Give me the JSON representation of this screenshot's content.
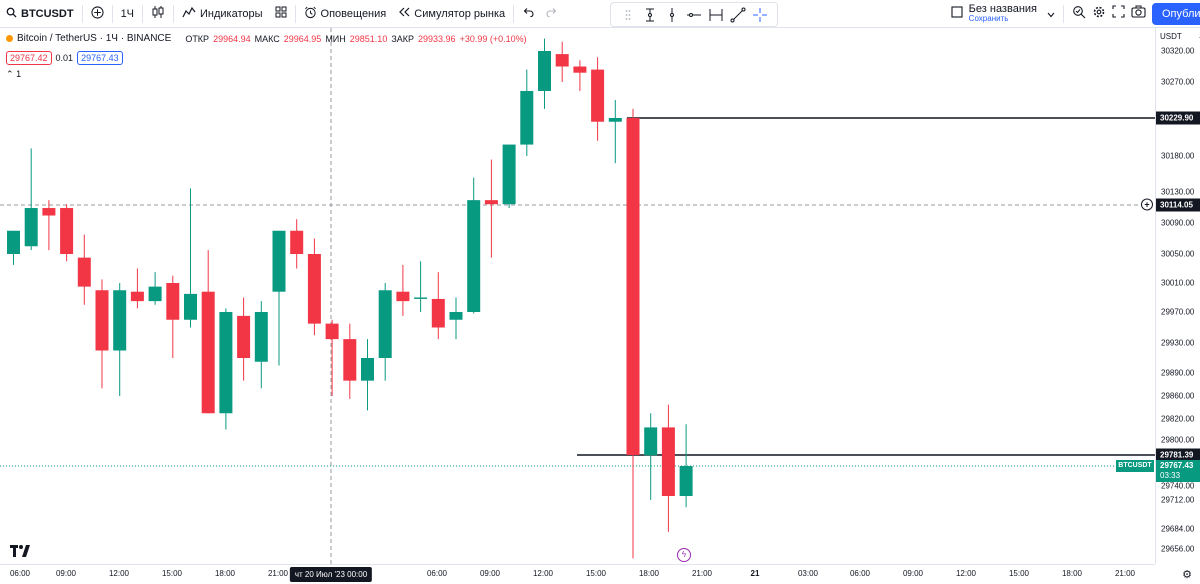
{
  "toolbar": {
    "symbol": "BTCUSDT",
    "interval": "1Ч",
    "indicators": "Индикаторы",
    "alerts": "Оповещения",
    "replay": "Симулятор рынка",
    "layout_title": "Без названия",
    "layout_saved": "Сохранить",
    "publish": "Опубликовать"
  },
  "legend": {
    "title": "Bitcoin / TetherUS · 1Ч · BINANCE",
    "open_label": "ОТКР",
    "open": "29964.94",
    "high_label": "МАКС",
    "high": "29964.95",
    "low_label": "МИН",
    "low": "29851.10",
    "close_label": "ЗАКР",
    "close": "29933.96",
    "change": "+30.99 (+0.10%)",
    "bid": "29767.42",
    "spread": "0.01",
    "ask": "29767.43",
    "collapse": "1"
  },
  "price_axis": {
    "currency": "USDT",
    "ticks": [
      "30320.00",
      "30270.00",
      "30229.90",
      "30180.00",
      "30130.00",
      "30114.05",
      "30090.00",
      "30050.00",
      "30010.00",
      "29970.00",
      "29930.00",
      "29890.00",
      "29860.00",
      "29820.00",
      "29800.00",
      "29781.39",
      "29767.43",
      "29740.00",
      "29712.00",
      "29684.00",
      "29656.00"
    ],
    "line_upper": "30229.90",
    "line_lower": "29781.39",
    "crosshair_price": "30114.05",
    "last_price": "29767.43",
    "countdown": "03:33",
    "ticker_tag": "BTCUSDT"
  },
  "time_axis": {
    "ticks": [
      "06:00",
      "09:00",
      "12:00",
      "15:00",
      "18:00",
      "21:00",
      "06:00",
      "09:00",
      "12:00",
      "15:00",
      "18:00",
      "21:00",
      "21",
      "03:00",
      "06:00",
      "09:00",
      "12:00",
      "15:00",
      "18:00",
      "21:00"
    ],
    "crosshair_time": "чт 20 Июл '23   00:00"
  },
  "colors": {
    "up": "#089981",
    "down": "#f23645",
    "accent": "#2962ff"
  },
  "chart_data": {
    "type": "candlestick",
    "candles": [
      {
        "o": 30050,
        "h": 30075,
        "l": 30035,
        "c": 30080
      },
      {
        "o": 30060,
        "h": 30190,
        "l": 30055,
        "c": 30110
      },
      {
        "o": 30110,
        "h": 30120,
        "l": 30055,
        "c": 30100
      },
      {
        "o": 30110,
        "h": 30115,
        "l": 30040,
        "c": 30050
      },
      {
        "o": 30045,
        "h": 30075,
        "l": 29980,
        "c": 30005
      },
      {
        "o": 30000,
        "h": 30015,
        "l": 29870,
        "c": 29920
      },
      {
        "o": 29920,
        "h": 30010,
        "l": 29860,
        "c": 30000
      },
      {
        "o": 29998,
        "h": 30030,
        "l": 29975,
        "c": 29985
      },
      {
        "o": 29985,
        "h": 30025,
        "l": 29980,
        "c": 30005
      },
      {
        "o": 30010,
        "h": 30020,
        "l": 29910,
        "c": 29960
      },
      {
        "o": 29960,
        "h": 30135,
        "l": 29950,
        "c": 29995
      },
      {
        "o": 29998,
        "h": 30055,
        "l": 29830,
        "c": 29830
      },
      {
        "o": 29830,
        "h": 29975,
        "l": 29810,
        "c": 29970
      },
      {
        "o": 29965,
        "h": 29990,
        "l": 29880,
        "c": 29910
      },
      {
        "o": 29905,
        "h": 29985,
        "l": 29870,
        "c": 29970
      },
      {
        "o": 29998,
        "h": 30075,
        "l": 29900,
        "c": 30080
      },
      {
        "o": 30080,
        "h": 30095,
        "l": 30030,
        "c": 30050
      },
      {
        "o": 30050,
        "h": 30070,
        "l": 29940,
        "c": 29955
      },
      {
        "o": 29955,
        "h": 29960,
        "l": 29860,
        "c": 29935
      },
      {
        "o": 29935,
        "h": 29955,
        "l": 29855,
        "c": 29880
      },
      {
        "o": 29880,
        "h": 29935,
        "l": 29835,
        "c": 29910
      },
      {
        "o": 29910,
        "h": 30010,
        "l": 29880,
        "c": 30000
      },
      {
        "o": 29998,
        "h": 30035,
        "l": 29965,
        "c": 29985
      },
      {
        "o": 29988,
        "h": 30040,
        "l": 29970,
        "c": 29990
      },
      {
        "o": 29988,
        "h": 30025,
        "l": 29935,
        "c": 29950
      },
      {
        "o": 29960,
        "h": 29990,
        "l": 29935,
        "c": 29970
      },
      {
        "o": 29970,
        "h": 30150,
        "l": 29968,
        "c": 30120
      },
      {
        "o": 30120,
        "h": 30175,
        "l": 30045,
        "c": 30115
      },
      {
        "o": 30115,
        "h": 30195,
        "l": 30110,
        "c": 30195
      },
      {
        "o": 30195,
        "h": 30290,
        "l": 30180,
        "c": 30260
      },
      {
        "o": 30260,
        "h": 30340,
        "l": 30240,
        "c": 30320
      },
      {
        "o": 30315,
        "h": 30335,
        "l": 30270,
        "c": 30295
      },
      {
        "o": 30295,
        "h": 30305,
        "l": 30260,
        "c": 30285
      },
      {
        "o": 30290,
        "h": 30310,
        "l": 30200,
        "c": 30225
      },
      {
        "o": 30225,
        "h": 30250,
        "l": 30170,
        "c": 30229.9
      },
      {
        "o": 30229.9,
        "h": 30240,
        "l": 29640,
        "c": 29781.39
      },
      {
        "o": 29781,
        "h": 29830,
        "l": 29712,
        "c": 29812
      },
      {
        "o": 29812,
        "h": 29845,
        "l": 29680,
        "c": 29720
      },
      {
        "o": 29720,
        "h": 29815,
        "l": 29705,
        "c": 29767.43
      }
    ]
  }
}
